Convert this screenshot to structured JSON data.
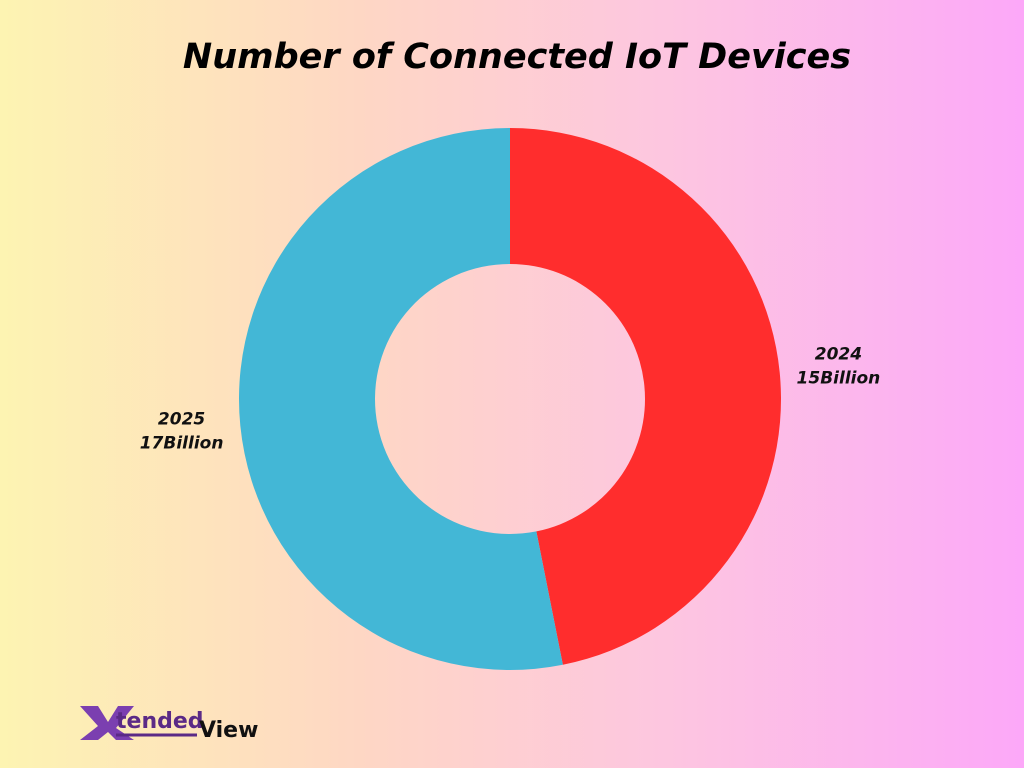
{
  "chart_data": {
    "type": "donut",
    "title": "Number of Connected IoT Devices",
    "categories": [
      "2024",
      "2025"
    ],
    "values": [
      15,
      17
    ],
    "value_labels": [
      "15Billion",
      "17Billion"
    ],
    "colors": [
      "#ff2d2d",
      "#43b7d6"
    ]
  },
  "logo": {
    "mark": "X",
    "word": "tended",
    "second_word": "View"
  }
}
